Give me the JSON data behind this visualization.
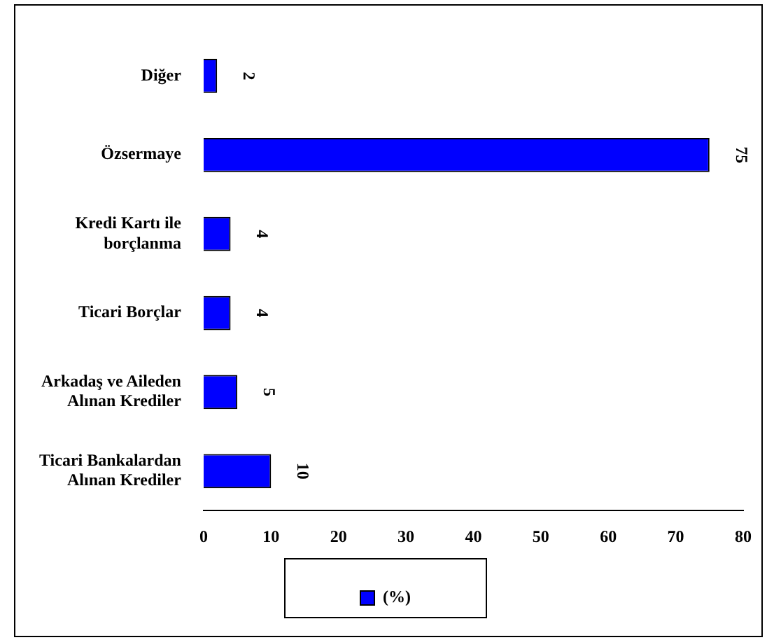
{
  "chart_data": {
    "type": "bar",
    "orientation": "horizontal",
    "categories": [
      "Diğer",
      "Özsermaye",
      "Kredi Kartı ile borçlanma",
      "Ticari Borçlar",
      "Arkadaş ve Aileden Alınan Krediler",
      "Ticari Bankalardan Alınan Krediler"
    ],
    "series": [
      {
        "name": "(%)",
        "color": "#0000ff",
        "values": [
          2,
          75,
          4,
          4,
          5,
          10
        ]
      }
    ],
    "xlim": [
      0,
      80
    ],
    "xticks": [
      0,
      10,
      20,
      30,
      40,
      50,
      60,
      70,
      80
    ],
    "data_labels": true,
    "grid": false,
    "legend": "bottom"
  }
}
